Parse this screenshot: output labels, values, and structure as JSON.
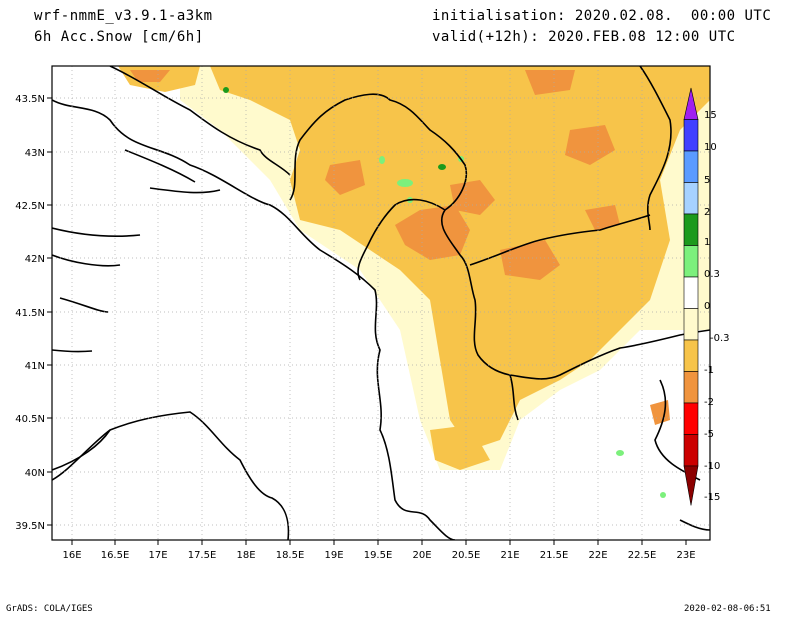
{
  "header": {
    "model": "wrf-nmmE_v3.9.1-a3km",
    "field": "6h Acc.Snow [cm/6h]",
    "init": "initialisation: 2020.02.08.  00:00 UTC",
    "valid": "valid(+12h): 2020.FEB.08 12:00 UTC"
  },
  "footer": {
    "software": "GrADS: COLA/IGES",
    "timestamp": "2020-02-08-06:51"
  },
  "axes": {
    "lat_labels": [
      "43.5N",
      "43N",
      "42.5N",
      "42N",
      "41.5N",
      "41N",
      "40.5N",
      "40N",
      "39.5N"
    ],
    "lon_labels": [
      "16E",
      "16.5E",
      "17E",
      "17.5E",
      "18E",
      "18.5E",
      "19E",
      "19.5E",
      "20E",
      "20.5E",
      "21E",
      "21.5E",
      "22E",
      "22.5E",
      "23E"
    ]
  },
  "colorbar": {
    "labels": [
      "15",
      "10",
      "5",
      "2",
      "1",
      "0.3",
      "0",
      "-0.3",
      "-1",
      "-2",
      "-5",
      "-10",
      "-15"
    ],
    "colors": [
      "#a020f0",
      "#4040ff",
      "#5a9bff",
      "#a6d2ff",
      "#1c9a1c",
      "#7cf07c",
      "#ffffff",
      "#fffacd",
      "#f7c44a",
      "#f0943e",
      "#ff0000",
      "#cc0000",
      "#8b0000"
    ]
  }
}
